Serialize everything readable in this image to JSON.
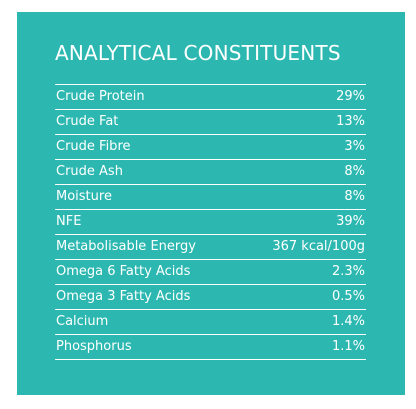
{
  "title": "ANALYTICAL CONSTITUENTS",
  "rows": [
    {
      "label": "Crude Protein",
      "value": "29%"
    },
    {
      "label": "Crude Fat",
      "value": "13%"
    },
    {
      "label": "Crude Fibre",
      "value": "3%"
    },
    {
      "label": "Crude Ash",
      "value": "8%"
    },
    {
      "label": "Moisture",
      "value": "8%"
    },
    {
      "label": "NFE",
      "value": "39%"
    },
    {
      "label": "Metabolisable Energy",
      "value": "367 kcal/100g"
    },
    {
      "label": "Omega 6 Fatty Acids",
      "value": "2.3%"
    },
    {
      "label": "Omega 3 Fatty Acids",
      "value": "0.5%"
    },
    {
      "label": "Calcium",
      "value": "1.4%"
    },
    {
      "label": "Phosphorus",
      "value": "1.1%"
    }
  ],
  "colors": {
    "panel_background": "#2cb8b1",
    "text": "#ffffff"
  }
}
